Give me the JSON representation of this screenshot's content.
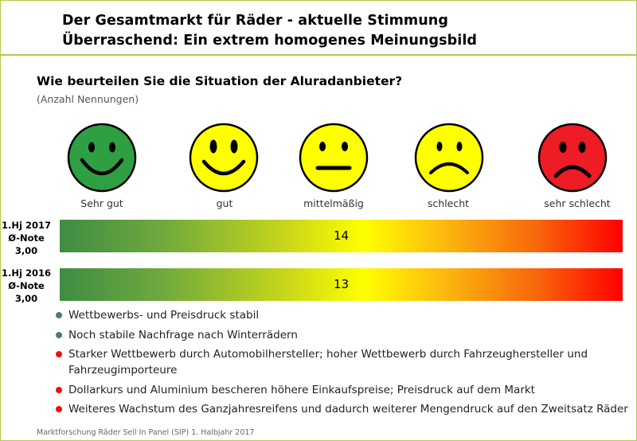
{
  "header": {
    "title_line1": "Der Gesamtmarkt für Räder - aktuelle Stimmung",
    "title_line2": "Überraschend: Ein extrem homogenes Meinungsbild"
  },
  "question": "Wie beurteilen Sie die Situation der Aluradanbieter?",
  "subtitle": "(Anzahl Nennungen)",
  "scale": [
    {
      "label": "Sehr gut",
      "icon": "very-happy-smiley-icon",
      "color": "#2ea043"
    },
    {
      "label": "gut",
      "icon": "happy-smiley-icon",
      "color": "#ffff00"
    },
    {
      "label": "mittelmäßig",
      "icon": "neutral-smiley-icon",
      "color": "#ffff00"
    },
    {
      "label": "schlecht",
      "icon": "sad-smiley-icon",
      "color": "#ffff00"
    },
    {
      "label": "sehr schlecht",
      "icon": "very-sad-smiley-icon",
      "color": "#ee1c25"
    }
  ],
  "chart_data": {
    "type": "bar",
    "scale_categories": [
      "Sehr gut",
      "gut",
      "mittelmäßig",
      "schlecht",
      "sehr schlecht"
    ],
    "rows": [
      {
        "period": "1.Hj 2017",
        "grade_label": "Ø-Note",
        "grade": "3,00",
        "value": 14,
        "grade_numeric": 3.0
      },
      {
        "period": "1.Hj 2016",
        "grade_label": "Ø-Note",
        "grade": "3,00",
        "value": 13,
        "grade_numeric": 3.0
      }
    ],
    "xlim": [
      1,
      5
    ],
    "gradient_colors": [
      "#3f8c43",
      "#ffff00",
      "#ff0000"
    ]
  },
  "bullets": [
    {
      "text": "Wettbewerbs- und Preisdruck stabil",
      "color": "#4f7f5f"
    },
    {
      "text": "Noch stabile Nachfrage nach Winterrädern",
      "color": "#4f7f5f"
    },
    {
      "text": "Starker Wettbewerb durch Automobilhersteller; hoher Wettbewerb durch Fahrzeughersteller und Fahrzeugimporteure",
      "color": "#ee1111"
    },
    {
      "text": "Dollarkurs und Aluminium bescheren höhere Einkaufspreise; Preisdruck auf dem Markt",
      "color": "#ee1111"
    },
    {
      "text": "Weiteres Wachstum des Ganzjahresreifens und dadurch weiterer Mengendruck auf den Zweitsatz Räder",
      "color": "#ee1111"
    }
  ],
  "footer": "Marktforschung Räder Sell In Panel (SIP) 1. Halbjahr 2017"
}
